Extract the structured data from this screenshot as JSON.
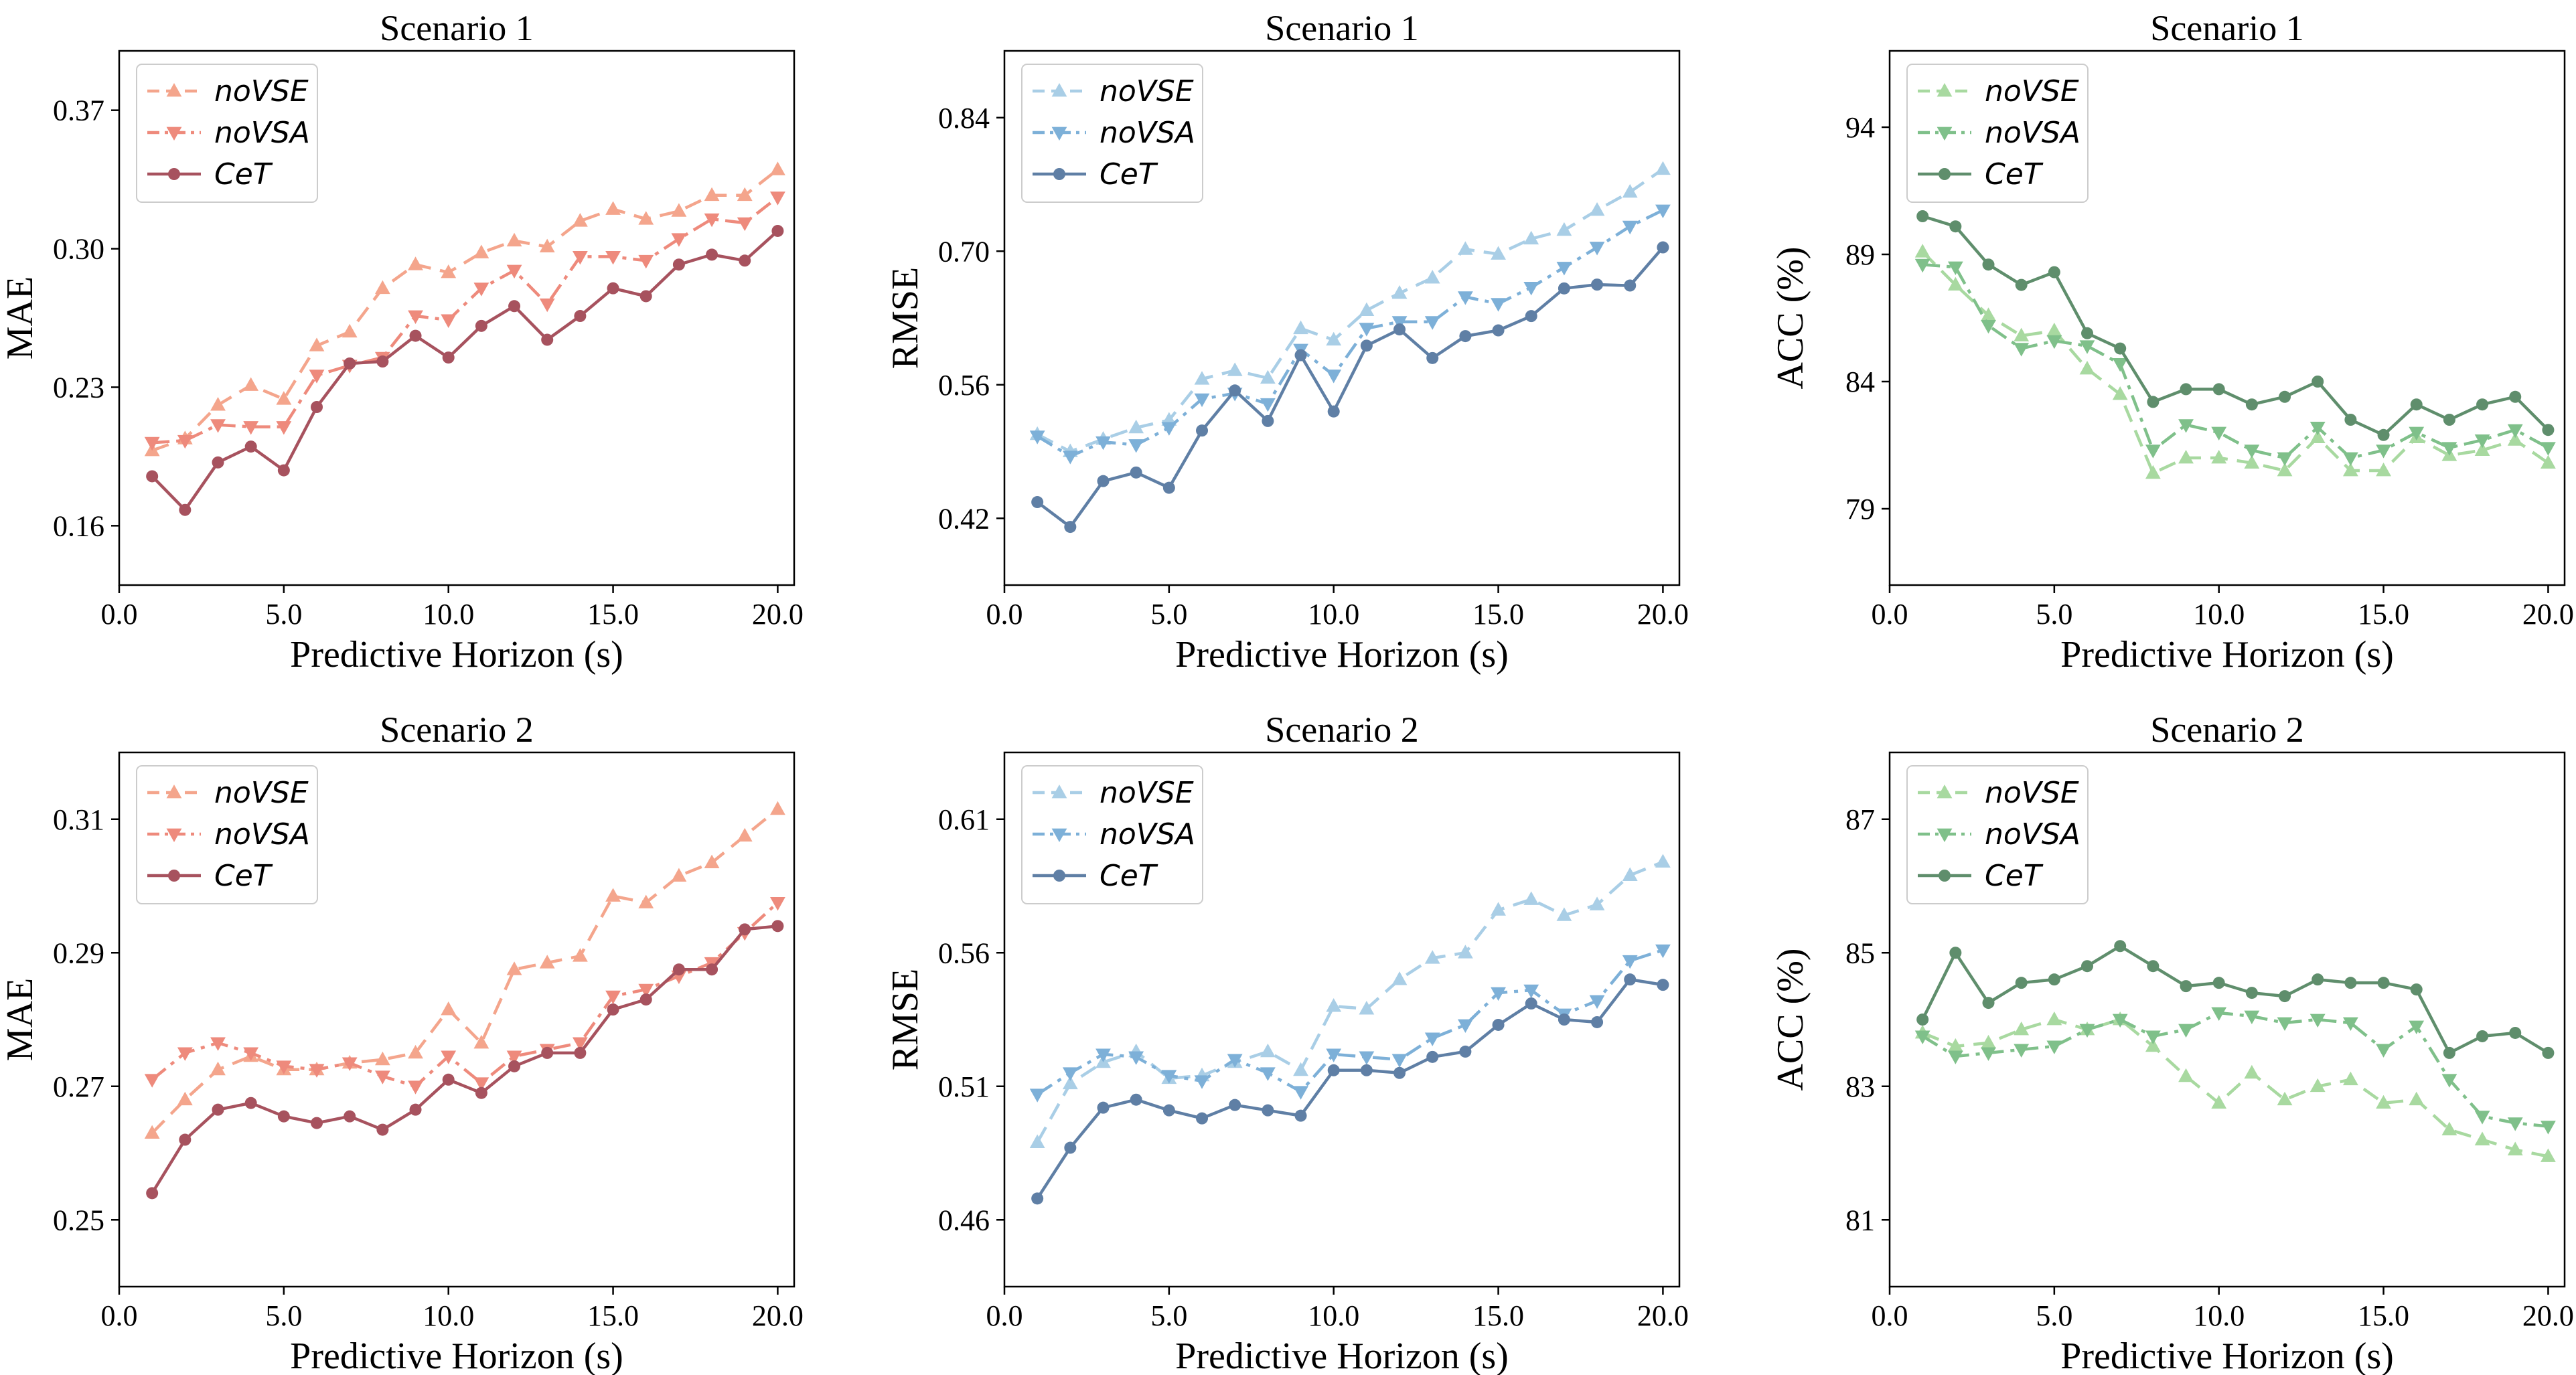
{
  "chart_data": [
    {
      "type": "line",
      "title": "Scenario 1",
      "xlabel": "Predictive Horizon (s)",
      "ylabel": "MAE",
      "xlim": [
        0,
        20.5
      ],
      "ylim": [
        0.13,
        0.4
      ],
      "xticks": [
        0,
        5,
        10,
        15,
        20
      ],
      "xtick_labels": [
        "0.0",
        "5.0",
        "10.0",
        "15.0",
        "20.0"
      ],
      "yticks": [
        0.16,
        0.23,
        0.3,
        0.37
      ],
      "ytick_labels": [
        "0.16",
        "0.23",
        "0.30",
        "0.37"
      ],
      "legend_position": "top-left",
      "grid": false,
      "x": [
        1,
        2,
        3,
        4,
        5,
        6,
        7,
        8,
        9,
        10,
        11,
        12,
        13,
        14,
        15,
        16,
        17,
        18,
        19,
        20
      ],
      "series": [
        {
          "name": "noVSE",
          "color": "#F4A58C",
          "marker": "triangle-up",
          "dash": "dashed",
          "values": [
            0.198,
            0.204,
            0.221,
            0.231,
            0.224,
            0.251,
            0.258,
            0.28,
            0.292,
            0.288,
            0.298,
            0.304,
            0.301,
            0.314,
            0.32,
            0.315,
            0.319,
            0.327,
            0.327,
            0.34
          ]
        },
        {
          "name": "noVSA",
          "color": "#EE8A7C",
          "marker": "triangle-down",
          "dash": "dashdot",
          "values": [
            0.202,
            0.203,
            0.211,
            0.21,
            0.21,
            0.236,
            0.241,
            0.245,
            0.266,
            0.264,
            0.28,
            0.289,
            0.272,
            0.296,
            0.296,
            0.294,
            0.305,
            0.315,
            0.313,
            0.326
          ]
        },
        {
          "name": "CeT",
          "color": "#A7525E",
          "marker": "circle",
          "dash": "solid",
          "values": [
            0.185,
            0.168,
            0.192,
            0.2,
            0.188,
            0.22,
            0.242,
            0.243,
            0.256,
            0.245,
            0.261,
            0.271,
            0.254,
            0.266,
            0.28,
            0.276,
            0.292,
            0.297,
            0.294,
            0.309
          ]
        }
      ]
    },
    {
      "type": "line",
      "title": "Scenario 1",
      "xlabel": "Predictive Horizon (s)",
      "ylabel": "RMSE",
      "xlim": [
        0,
        20.5
      ],
      "ylim": [
        0.35,
        0.91
      ],
      "xticks": [
        0,
        5,
        10,
        15,
        20
      ],
      "xtick_labels": [
        "0.0",
        "5.0",
        "10.0",
        "15.0",
        "20.0"
      ],
      "yticks": [
        0.42,
        0.56,
        0.7,
        0.84
      ],
      "ytick_labels": [
        "0.42",
        "0.56",
        "0.70",
        "0.84"
      ],
      "legend_position": "top-left",
      "grid": false,
      "x": [
        1,
        2,
        3,
        4,
        5,
        6,
        7,
        8,
        9,
        10,
        11,
        12,
        13,
        14,
        15,
        16,
        17,
        18,
        19,
        20
      ],
      "series": [
        {
          "name": "noVSE",
          "color": "#A9CEE6",
          "marker": "triangle-up",
          "dash": "dashed",
          "values": [
            0.508,
            0.49,
            0.503,
            0.515,
            0.523,
            0.566,
            0.575,
            0.567,
            0.619,
            0.607,
            0.638,
            0.656,
            0.672,
            0.702,
            0.697,
            0.713,
            0.722,
            0.743,
            0.762,
            0.786
          ]
        },
        {
          "name": "noVSA",
          "color": "#7DB0D8",
          "marker": "triangle-down",
          "dash": "dashdot",
          "values": [
            0.506,
            0.485,
            0.5,
            0.497,
            0.515,
            0.545,
            0.551,
            0.54,
            0.597,
            0.57,
            0.619,
            0.626,
            0.626,
            0.652,
            0.645,
            0.662,
            0.683,
            0.704,
            0.726,
            0.743
          ]
        },
        {
          "name": "CeT",
          "color": "#5F7FA5",
          "marker": "circle",
          "dash": "solid",
          "values": [
            0.437,
            0.411,
            0.459,
            0.468,
            0.452,
            0.512,
            0.554,
            0.522,
            0.591,
            0.532,
            0.601,
            0.618,
            0.588,
            0.611,
            0.617,
            0.632,
            0.661,
            0.665,
            0.664,
            0.704
          ]
        }
      ]
    },
    {
      "type": "line",
      "title": "Scenario 1",
      "xlabel": "Predictive Horizon (s)",
      "ylabel": "ACC (%)",
      "xlim": [
        0,
        20.5
      ],
      "ylim": [
        76,
        97
      ],
      "xticks": [
        0,
        5,
        10,
        15,
        20
      ],
      "xtick_labels": [
        "0.0",
        "5.0",
        "10.0",
        "15.0",
        "20.0"
      ],
      "yticks": [
        79,
        84,
        89,
        94
      ],
      "ytick_labels": [
        "79",
        "84",
        "89",
        "94"
      ],
      "legend_position": "top-left",
      "grid": false,
      "x": [
        1,
        2,
        3,
        4,
        5,
        6,
        7,
        8,
        9,
        10,
        11,
        12,
        13,
        14,
        15,
        16,
        17,
        18,
        19,
        20
      ],
      "series": [
        {
          "name": "noVSE",
          "color": "#A8D9A0",
          "marker": "triangle-up",
          "dash": "dashed",
          "values": [
            89.1,
            87.8,
            86.6,
            85.8,
            86.0,
            84.5,
            83.5,
            80.4,
            81.0,
            81.0,
            80.8,
            80.5,
            81.8,
            80.5,
            80.5,
            81.8,
            81.1,
            81.3,
            81.7,
            80.8
          ]
        },
        {
          "name": "noVSA",
          "color": "#7FC08A",
          "marker": "triangle-down",
          "dash": "dashdot",
          "values": [
            88.6,
            88.5,
            86.2,
            85.3,
            85.6,
            85.4,
            84.7,
            81.3,
            82.3,
            82.0,
            81.3,
            81.0,
            82.2,
            81.0,
            81.3,
            82.0,
            81.4,
            81.7,
            82.1,
            81.4
          ]
        },
        {
          "name": "CeT",
          "color": "#5F8E6C",
          "marker": "circle",
          "dash": "solid",
          "values": [
            90.5,
            90.1,
            88.6,
            87.8,
            88.3,
            85.9,
            85.3,
            83.2,
            83.7,
            83.7,
            83.1,
            83.4,
            84.0,
            82.5,
            81.9,
            83.1,
            82.5,
            83.1,
            83.4,
            82.1
          ]
        }
      ]
    },
    {
      "type": "line",
      "title": "Scenario 2",
      "xlabel": "Predictive Horizon (s)",
      "ylabel": "MAE",
      "xlim": [
        0,
        20.5
      ],
      "ylim": [
        0.24,
        0.32
      ],
      "xticks": [
        0,
        5,
        10,
        15,
        20
      ],
      "xtick_labels": [
        "0.0",
        "5.0",
        "10.0",
        "15.0",
        "20.0"
      ],
      "yticks": [
        0.25,
        0.27,
        0.29,
        0.31
      ],
      "ytick_labels": [
        "0.25",
        "0.27",
        "0.29",
        "0.31"
      ],
      "legend_position": "top-left",
      "grid": false,
      "x": [
        1,
        2,
        3,
        4,
        5,
        6,
        7,
        8,
        9,
        10,
        11,
        12,
        13,
        14,
        15,
        16,
        17,
        18,
        19,
        20
      ],
      "series": [
        {
          "name": "noVSE",
          "color": "#F4A58C",
          "marker": "triangle-up",
          "dash": "dashed",
          "values": [
            0.263,
            0.268,
            0.2725,
            0.2745,
            0.2725,
            0.2725,
            0.2735,
            0.274,
            0.275,
            0.2815,
            0.2765,
            0.2875,
            0.2885,
            0.2895,
            0.2985,
            0.2975,
            0.3015,
            0.3035,
            0.3075,
            0.3115
          ]
        },
        {
          "name": "noVSA",
          "color": "#EE8A7C",
          "marker": "triangle-down",
          "dash": "dashdot",
          "values": [
            0.271,
            0.275,
            0.2765,
            0.275,
            0.273,
            0.2725,
            0.2735,
            0.2715,
            0.27,
            0.2745,
            0.2705,
            0.2745,
            0.2755,
            0.2765,
            0.2835,
            0.2845,
            0.2865,
            0.2885,
            0.293,
            0.2975
          ]
        },
        {
          "name": "CeT",
          "color": "#A7525E",
          "marker": "circle",
          "dash": "solid",
          "values": [
            0.254,
            0.262,
            0.2665,
            0.2675,
            0.2655,
            0.2645,
            0.2655,
            0.2635,
            0.2665,
            0.271,
            0.269,
            0.273,
            0.275,
            0.275,
            0.2815,
            0.283,
            0.2875,
            0.2875,
            0.2935,
            0.294
          ]
        }
      ]
    },
    {
      "type": "line",
      "title": "Scenario 2",
      "xlabel": "Predictive Horizon (s)",
      "ylabel": "RMSE",
      "xlim": [
        0,
        20.5
      ],
      "ylim": [
        0.435,
        0.635
      ],
      "xticks": [
        0,
        5,
        10,
        15,
        20
      ],
      "xtick_labels": [
        "0.0",
        "5.0",
        "10.0",
        "15.0",
        "20.0"
      ],
      "yticks": [
        0.46,
        0.51,
        0.56,
        0.61
      ],
      "ytick_labels": [
        "0.46",
        "0.51",
        "0.56",
        "0.61"
      ],
      "legend_position": "top-left",
      "grid": false,
      "x": [
        1,
        2,
        3,
        4,
        5,
        6,
        7,
        8,
        9,
        10,
        11,
        12,
        13,
        14,
        15,
        16,
        17,
        18,
        19,
        20
      ],
      "series": [
        {
          "name": "noVSE",
          "color": "#A9CEE6",
          "marker": "triangle-up",
          "dash": "dashed",
          "values": [
            0.489,
            0.511,
            0.519,
            0.523,
            0.513,
            0.514,
            0.519,
            0.523,
            0.516,
            0.54,
            0.539,
            0.55,
            0.558,
            0.56,
            0.576,
            0.58,
            0.574,
            0.578,
            0.589,
            0.594
          ]
        },
        {
          "name": "noVSA",
          "color": "#7DB0D8",
          "marker": "triangle-down",
          "dash": "dashdot",
          "values": [
            0.507,
            0.515,
            0.522,
            0.521,
            0.514,
            0.512,
            0.52,
            0.515,
            0.508,
            0.522,
            0.521,
            0.52,
            0.528,
            0.533,
            0.545,
            0.546,
            0.537,
            0.542,
            0.557,
            0.561
          ]
        },
        {
          "name": "CeT",
          "color": "#5F7FA5",
          "marker": "circle",
          "dash": "solid",
          "values": [
            0.468,
            0.487,
            0.502,
            0.505,
            0.501,
            0.498,
            0.503,
            0.501,
            0.499,
            0.516,
            0.516,
            0.515,
            0.521,
            0.523,
            0.533,
            0.541,
            0.535,
            0.534,
            0.55,
            0.548
          ]
        }
      ]
    },
    {
      "type": "line",
      "title": "Scenario 2",
      "xlabel": "Predictive Horizon (s)",
      "ylabel": "ACC (%)",
      "xlim": [
        0,
        20.5
      ],
      "ylim": [
        80,
        88
      ],
      "xticks": [
        0,
        5,
        10,
        15,
        20
      ],
      "xtick_labels": [
        "0.0",
        "5.0",
        "10.0",
        "15.0",
        "20.0"
      ],
      "yticks": [
        81,
        83,
        85,
        87
      ],
      "ytick_labels": [
        "81",
        "83",
        "85",
        "87"
      ],
      "legend_position": "top-left",
      "grid": false,
      "x": [
        1,
        2,
        3,
        4,
        5,
        6,
        7,
        8,
        9,
        10,
        11,
        12,
        13,
        14,
        15,
        16,
        17,
        18,
        19,
        20
      ],
      "series": [
        {
          "name": "noVSE",
          "color": "#A8D9A0",
          "marker": "triangle-up",
          "dash": "dashed",
          "values": [
            83.8,
            83.6,
            83.65,
            83.85,
            84.0,
            83.85,
            84.0,
            83.6,
            83.15,
            82.75,
            83.2,
            82.8,
            83.0,
            83.1,
            82.75,
            82.8,
            82.35,
            82.2,
            82.05,
            81.95
          ]
        },
        {
          "name": "noVSA",
          "color": "#7FC08A",
          "marker": "triangle-down",
          "dash": "dashdot",
          "values": [
            83.75,
            83.45,
            83.5,
            83.55,
            83.6,
            83.85,
            84.0,
            83.75,
            83.85,
            84.1,
            84.05,
            83.95,
            84.0,
            83.95,
            83.55,
            83.9,
            83.1,
            82.55,
            82.45,
            82.4
          ]
        },
        {
          "name": "CeT",
          "color": "#5F8E6C",
          "marker": "circle",
          "dash": "solid",
          "values": [
            84.0,
            85.0,
            84.25,
            84.55,
            84.6,
            84.8,
            85.1,
            84.8,
            84.5,
            84.55,
            84.4,
            84.35,
            84.6,
            84.55,
            84.55,
            84.45,
            83.5,
            83.75,
            83.8,
            83.5
          ]
        }
      ]
    }
  ]
}
